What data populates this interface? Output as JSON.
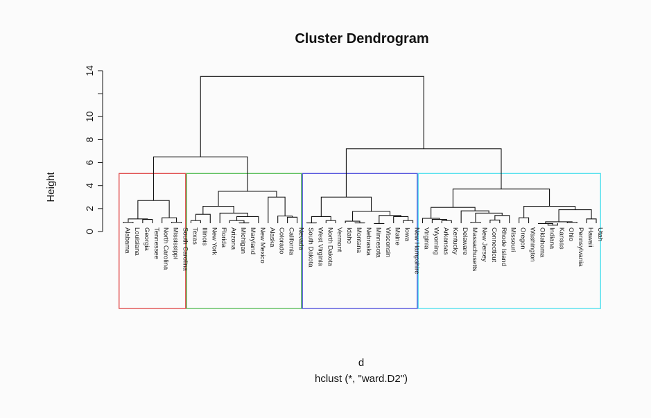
{
  "chart_data": {
    "type": "dendrogram",
    "title": "Cluster Dendrogram",
    "ylabel": "Height",
    "xlabel": "d",
    "subtitle": "hclust (*, \"ward.D2\")",
    "ylim": [
      0,
      14
    ],
    "yticks": [
      0,
      2,
      4,
      6,
      8,
      10,
      14
    ],
    "leaves": [
      "Alabama",
      "Louisiana",
      "Georgia",
      "Tennessee",
      "North Carolina",
      "Mississippi",
      "South Carolina",
      "Texas",
      "Illinois",
      "New York",
      "Florida",
      "Arizona",
      "Michigan",
      "Maryland",
      "New Mexico",
      "Alaska",
      "Colorado",
      "California",
      "Nevada",
      "South Dakota",
      "West Virginia",
      "North Dakota",
      "Vermont",
      "Idaho",
      "Montana",
      "Nebraska",
      "Minnesota",
      "Wisconsin",
      "Maine",
      "Iowa",
      "New Hampshire",
      "Virginia",
      "Wyoming",
      "Arkansas",
      "Kentucky",
      "Delaware",
      "Massachusetts",
      "New Jersey",
      "Connecticut",
      "Rhode Island",
      "Missouri",
      "Oregon",
      "Washington",
      "Oklahoma",
      "Indiana",
      "Kansas",
      "Ohio",
      "Pennsylvania",
      "Hawaii",
      "Utah"
    ],
    "clusters": [
      {
        "first": 0,
        "last": 6,
        "color": "#e05050"
      },
      {
        "first": 7,
        "last": 18,
        "color": "#5cbf5c"
      },
      {
        "first": 19,
        "last": 30,
        "color": "#5555dd"
      },
      {
        "first": 31,
        "last": 49,
        "color": "#55e0ee"
      }
    ],
    "merges": [
      {
        "a": [
          "L",
          0
        ],
        "b": [
          "L",
          1
        ],
        "h": 0.8
      },
      {
        "a": [
          "L",
          2
        ],
        "b": [
          "L",
          3
        ],
        "h": 1.05
      },
      {
        "a": [
          "N",
          0
        ],
        "b": [
          "N",
          1
        ],
        "h": 1.1
      },
      {
        "a": [
          "L",
          5
        ],
        "b": [
          "L",
          6
        ],
        "h": 0.8
      },
      {
        "a": [
          "L",
          4
        ],
        "b": [
          "N",
          3
        ],
        "h": 1.2
      },
      {
        "a": [
          "N",
          2
        ],
        "b": [
          "N",
          4
        ],
        "h": 2.7
      },
      {
        "a": [
          "L",
          7
        ],
        "b": [
          "L",
          8
        ],
        "h": 0.95
      },
      {
        "a": [
          "N",
          6
        ],
        "b": [
          "L",
          9
        ],
        "h": 1.5
      },
      {
        "a": [
          "L",
          12
        ],
        "b": [
          "L",
          13
        ],
        "h": 0.75
      },
      {
        "a": [
          "L",
          11
        ],
        "b": [
          "N",
          8
        ],
        "h": 0.95
      },
      {
        "a": [
          "N",
          9
        ],
        "b": [
          "L",
          14
        ],
        "h": 1.3
      },
      {
        "a": [
          "L",
          10
        ],
        "b": [
          "N",
          10
        ],
        "h": 1.6
      },
      {
        "a": [
          "N",
          7
        ],
        "b": [
          "N",
          11
        ],
        "h": 2.2
      },
      {
        "a": [
          "L",
          17
        ],
        "b": [
          "L",
          18
        ],
        "h": 1.25
      },
      {
        "a": [
          "L",
          16
        ],
        "b": [
          "N",
          13
        ],
        "h": 1.35
      },
      {
        "a": [
          "L",
          15
        ],
        "b": [
          "N",
          14
        ],
        "h": 3.0
      },
      {
        "a": [
          "N",
          12
        ],
        "b": [
          "N",
          15
        ],
        "h": 3.5
      },
      {
        "a": [
          "L",
          19
        ],
        "b": [
          "L",
          20
        ],
        "h": 0.75
      },
      {
        "a": [
          "L",
          21
        ],
        "b": [
          "L",
          22
        ],
        "h": 0.95
      },
      {
        "a": [
          "N",
          17
        ],
        "b": [
          "N",
          18
        ],
        "h": 1.3
      },
      {
        "a": [
          "L",
          24
        ],
        "b": [
          "L",
          25
        ],
        "h": 0.75
      },
      {
        "a": [
          "L",
          23
        ],
        "b": [
          "N",
          20
        ],
        "h": 0.9
      },
      {
        "a": [
          "L",
          26
        ],
        "b": [
          "L",
          27
        ],
        "h": 0.7
      },
      {
        "a": [
          "L",
          29
        ],
        "b": [
          "L",
          30
        ],
        "h": 0.95
      },
      {
        "a": [
          "L",
          28
        ],
        "b": [
          "N",
          23
        ],
        "h": 1.3
      },
      {
        "a": [
          "N",
          22
        ],
        "b": [
          "N",
          24
        ],
        "h": 1.4
      },
      {
        "a": [
          "N",
          21
        ],
        "b": [
          "N",
          25
        ],
        "h": 1.75
      },
      {
        "a": [
          "N",
          19
        ],
        "b": [
          "N",
          26
        ],
        "h": 3.0
      },
      {
        "a": [
          "L",
          33
        ],
        "b": [
          "L",
          34
        ],
        "h": 0.95
      },
      {
        "a": [
          "L",
          32
        ],
        "b": [
          "N",
          28
        ],
        "h": 1.05
      },
      {
        "a": [
          "L",
          31
        ],
        "b": [
          "N",
          29
        ],
        "h": 1.15
      },
      {
        "a": [
          "L",
          36
        ],
        "b": [
          "L",
          37
        ],
        "h": 0.8
      },
      {
        "a": [
          "L",
          38
        ],
        "b": [
          "L",
          39
        ],
        "h": 1.0
      },
      {
        "a": [
          "N",
          32
        ],
        "b": [
          "L",
          40
        ],
        "h": 1.4
      },
      {
        "a": [
          "N",
          31
        ],
        "b": [
          "N",
          33
        ],
        "h": 1.6
      },
      {
        "a": [
          "L",
          35
        ],
        "b": [
          "N",
          34
        ],
        "h": 1.8
      },
      {
        "a": [
          "N",
          30
        ],
        "b": [
          "N",
          35
        ],
        "h": 2.1
      },
      {
        "a": [
          "L",
          41
        ],
        "b": [
          "L",
          42
        ],
        "h": 1.2
      },
      {
        "a": [
          "L",
          44
        ],
        "b": [
          "L",
          45
        ],
        "h": 0.55
      },
      {
        "a": [
          "L",
          43
        ],
        "b": [
          "N",
          38
        ],
        "h": 0.7
      },
      {
        "a": [
          "L",
          46
        ],
        "b": [
          "L",
          47
        ],
        "h": 0.8
      },
      {
        "a": [
          "N",
          39
        ],
        "b": [
          "N",
          40
        ],
        "h": 0.85
      },
      {
        "a": [
          "L",
          48
        ],
        "b": [
          "L",
          49
        ],
        "h": 1.1
      },
      {
        "a": [
          "N",
          41
        ],
        "b": [
          "N",
          42
        ],
        "h": 1.9
      },
      {
        "a": [
          "N",
          37
        ],
        "b": [
          "N",
          43
        ],
        "h": 2.2
      },
      {
        "a": [
          "N",
          36
        ],
        "b": [
          "N",
          44
        ],
        "h": 3.7
      },
      {
        "a": [
          "N",
          5
        ],
        "b": [
          "N",
          16
        ],
        "h": 6.5
      },
      {
        "a": [
          "N",
          27
        ],
        "b": [
          "N",
          45
        ],
        "h": 7.2
      },
      {
        "a": [
          "N",
          46
        ],
        "b": [
          "N",
          47
        ],
        "h": 13.5
      }
    ]
  }
}
